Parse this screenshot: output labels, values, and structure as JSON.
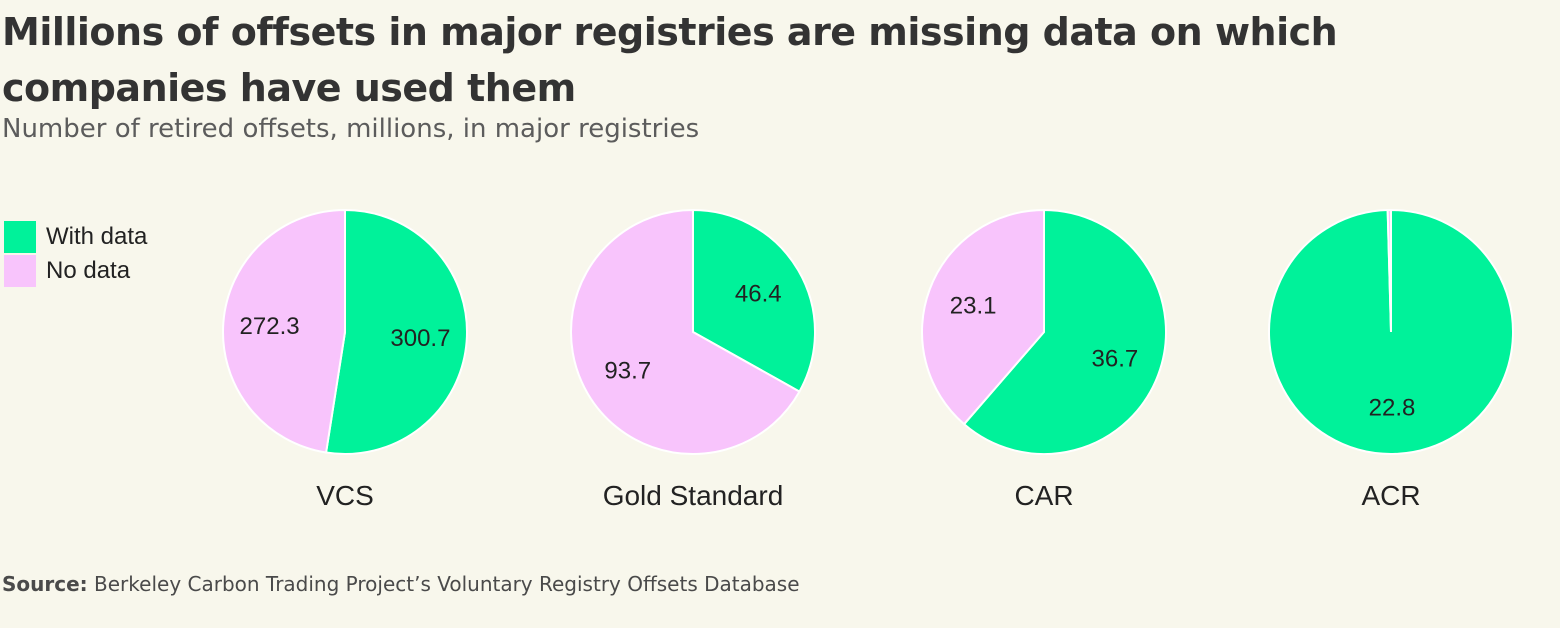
{
  "title": "Millions of offsets in major registries are missing data on which companies have used them",
  "subtitle": "Number of retired offsets, millions, in major registries",
  "source_label": "Source:",
  "source_text": "Berkeley Carbon Trading Project’s Voluntary Registry Offsets Database",
  "legend": [
    {
      "label": "With data",
      "color": "#00f29a"
    },
    {
      "label": "No data",
      "color": "#f8c4fc"
    }
  ],
  "chart_data": {
    "type": "pie",
    "series_names": [
      "With data",
      "No data"
    ],
    "colors": {
      "With data": "#00f29a",
      "No data": "#f8c4fc"
    },
    "legend_position": "top-left",
    "pies": [
      {
        "name": "VCS",
        "values": {
          "With data": 300.7,
          "No data": 272.3
        },
        "labels": {
          "With data": "300.7",
          "No data": "272.3"
        }
      },
      {
        "name": "Gold Standard",
        "values": {
          "With data": 46.4,
          "No data": 93.7
        },
        "labels": {
          "With data": "46.4",
          "No data": "93.7"
        }
      },
      {
        "name": "CAR",
        "values": {
          "With data": 36.7,
          "No data": 23.1
        },
        "labels": {
          "With data": "36.7",
          "No data": "23.1"
        }
      },
      {
        "name": "ACR",
        "values": {
          "With data": 22.8,
          "No data": 0.1
        },
        "labels": {
          "With data": "22.8",
          "No data": ""
        }
      }
    ]
  }
}
